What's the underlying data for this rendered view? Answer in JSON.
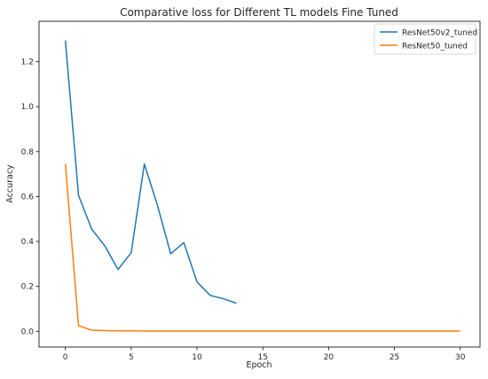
{
  "chart_data": {
    "type": "line",
    "title": "Comparative loss for Different TL models Fine Tuned",
    "xlabel": "Epoch",
    "ylabel": "Accuracy",
    "xlim": [
      -2,
      31.5
    ],
    "ylim": [
      -0.07,
      1.38
    ],
    "xticks": [
      0,
      5,
      10,
      15,
      20,
      25,
      30
    ],
    "yticks": [
      0.0,
      0.2,
      0.4,
      0.6,
      0.8,
      1.0,
      1.2
    ],
    "grid": false,
    "legend_position": "top-right",
    "series": [
      {
        "name": "ResNet50v2_tuned",
        "color": "#1f77b4",
        "x": [
          0,
          1,
          2,
          3,
          4,
          5,
          6,
          7,
          8,
          9,
          10,
          11,
          12,
          13
        ],
        "y": [
          1.295,
          0.605,
          0.455,
          0.38,
          0.275,
          0.35,
          0.745,
          0.56,
          0.345,
          0.395,
          0.22,
          0.16,
          0.145,
          0.125
        ]
      },
      {
        "name": "ResNet50_tuned",
        "color": "#ff7f0e",
        "x": [
          0,
          1,
          2,
          3,
          4,
          5,
          6,
          7,
          8,
          9,
          10,
          11,
          12,
          13,
          14,
          15,
          16,
          17,
          18,
          19,
          20,
          21,
          22,
          23,
          24,
          25,
          26,
          27,
          28,
          29,
          30
        ],
        "y": [
          0.745,
          0.025,
          0.005,
          0.003,
          0.002,
          0.002,
          0.001,
          0.001,
          0.001,
          0.001,
          0.001,
          0.001,
          0.001,
          0.001,
          0.001,
          0.001,
          0.001,
          0.001,
          0.001,
          0.001,
          0.001,
          0.001,
          0.001,
          0.001,
          0.001,
          0.001,
          0.001,
          0.001,
          0.001,
          0.001,
          0.001
        ]
      }
    ]
  }
}
